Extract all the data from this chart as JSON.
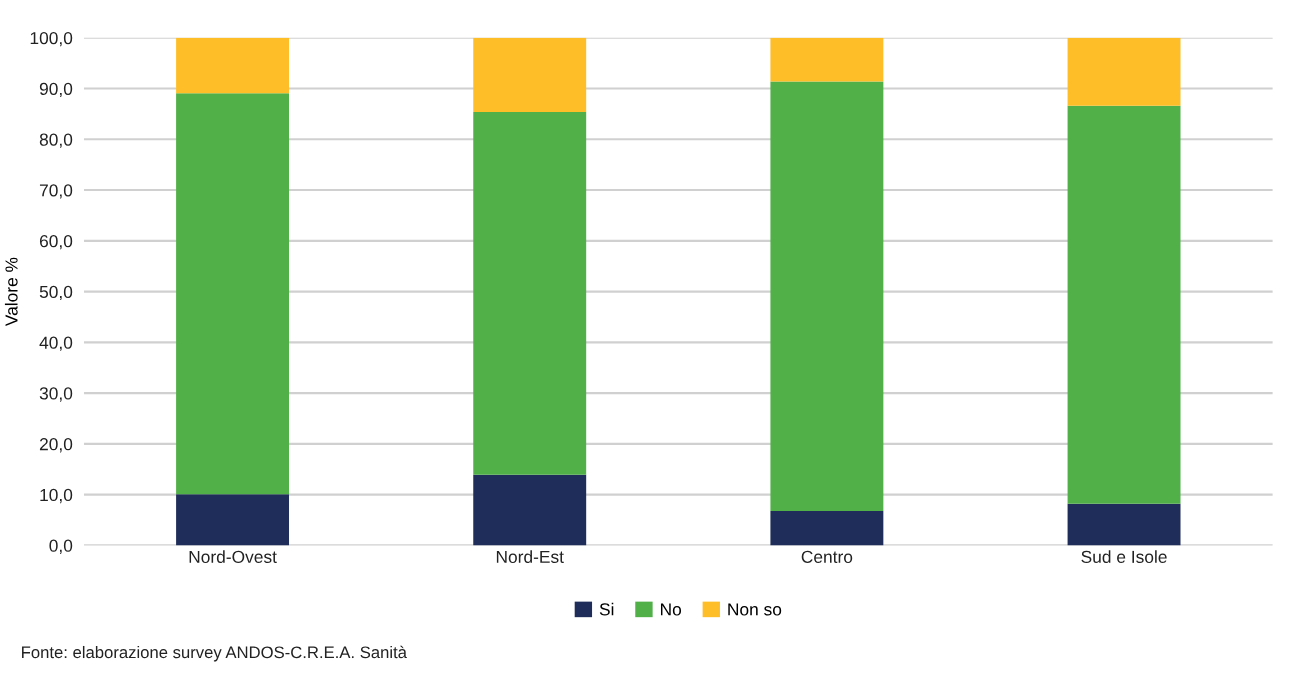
{
  "chart_data": {
    "type": "bar",
    "stacked": true,
    "ylabel": "Valore %",
    "categories": [
      "Nord-Ovest",
      "Nord-Est",
      "Centro",
      "Sud e Isole"
    ],
    "series": [
      {
        "name": "Si",
        "color": "#1e2d59",
        "values": [
          10.1,
          13.9,
          6.8,
          8.2
        ]
      },
      {
        "name": "No",
        "color": "#51b048",
        "values": [
          79.0,
          71.5,
          84.6,
          78.4
        ]
      },
      {
        "name": "Non so",
        "color": "#febe28",
        "values": [
          10.9,
          14.6,
          8.6,
          13.4
        ]
      }
    ],
    "ylim": [
      0,
      100
    ],
    "yticks": [
      {
        "value": 0,
        "label": "0,0"
      },
      {
        "value": 10,
        "label": "10,0"
      },
      {
        "value": 20,
        "label": "20,0"
      },
      {
        "value": 30,
        "label": "30,0"
      },
      {
        "value": 40,
        "label": "40,0"
      },
      {
        "value": 50,
        "label": "50,0"
      },
      {
        "value": 60,
        "label": "60,0"
      },
      {
        "value": 70,
        "label": "70,0"
      },
      {
        "value": 80,
        "label": "80,0"
      },
      {
        "value": 90,
        "label": "90,0"
      },
      {
        "value": 100,
        "label": "100,0"
      }
    ],
    "grid": "y",
    "legend": "bottom",
    "annotations": [
      "Fonte: elaborazione survey ANDOS-C.R.E.A. Sanità"
    ]
  }
}
